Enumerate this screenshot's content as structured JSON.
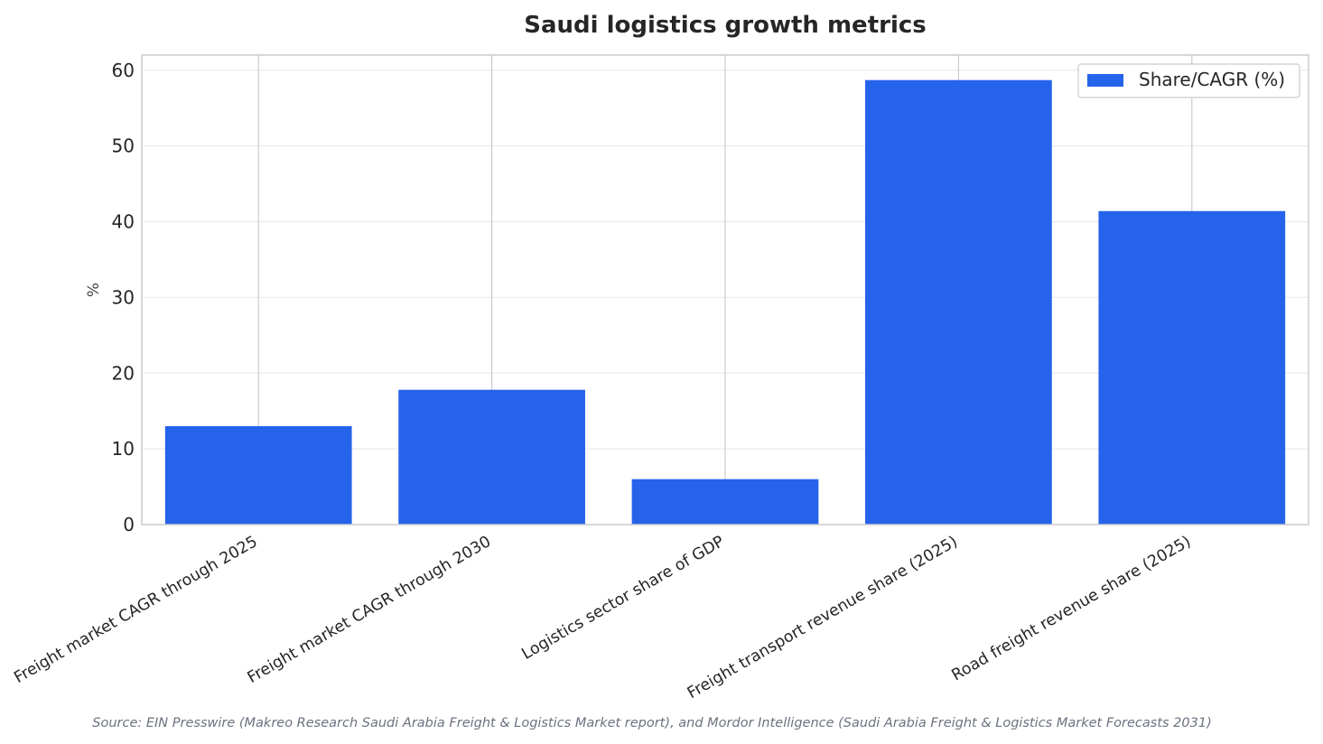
{
  "chart_data": {
    "type": "bar",
    "title": "Saudi logistics growth metrics",
    "xlabel": "",
    "ylabel": "%",
    "categories": [
      "Freight market CAGR through 2025",
      "Freight market CAGR through 2030",
      "Logistics sector share of GDP",
      "Freight transport revenue share (2025)",
      "Road freight revenue share (2025)"
    ],
    "series": [
      {
        "name": "Share/CAGR (%)",
        "color": "#2563eb",
        "values": [
          13.0,
          17.8,
          6.0,
          58.7,
          41.4
        ]
      }
    ],
    "ylim": [
      0,
      62
    ],
    "yticks": [
      0,
      10,
      20,
      30,
      40,
      50,
      60
    ],
    "grid": true,
    "legend_position": "top-right"
  },
  "source_note": "Source: EIN Presswire (Makreo Research Saudi Arabia Freight & Logistics Market report), and Mordor Intelligence (Saudi Arabia Freight & Logistics Market Forecasts 2031)"
}
